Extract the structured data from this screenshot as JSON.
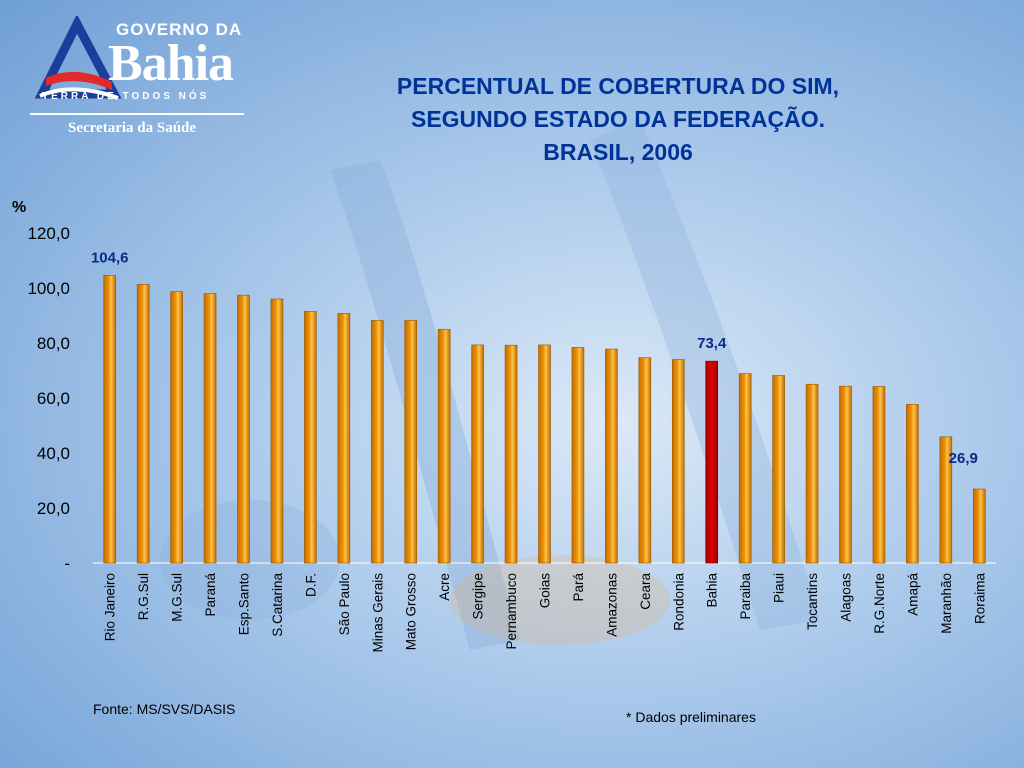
{
  "logo": {
    "top_text": "GOVERNO DA",
    "name": "Bahia",
    "tagline": "TERRA DE TODOS NÓS",
    "department": "Secretaria da Saúde"
  },
  "title_lines": [
    "PERCENTUAL DE COBERTURA DO SIM,",
    "SEGUNDO ESTADO DA FEDERAÇÃO.",
    "BRASIL, 2006"
  ],
  "colors": {
    "bar": "#f0960a",
    "highlight_bar": "#e00000",
    "title": "#003399",
    "data_label": "#0a2a8a"
  },
  "chart_data": {
    "type": "bar",
    "title": "PERCENTUAL DE COBERTURA DO SIM, SEGUNDO ESTADO DA FEDERAÇÃO. BRASIL, 2006",
    "ylabel": "%",
    "xlabel": "",
    "ylim": [
      0,
      120
    ],
    "yticks": [
      0,
      20,
      40,
      60,
      80,
      100,
      120
    ],
    "ytick_labels": [
      "-",
      "20,0",
      "40,0",
      "60,0",
      "80,0",
      "100,0",
      "120,0"
    ],
    "grid": false,
    "categories": [
      "Rio Janeiro",
      "R.G.Sul",
      "M.G.Sul",
      "Paraná",
      "Esp.Santo",
      "S.Catarina",
      "D.F.",
      "São Paulo",
      "Minas Gerais",
      "Mato Grosso",
      "Acre",
      "Sergipe",
      "Pernambuco",
      "Goias",
      "Pará",
      "Amazonas",
      "Ceara",
      "Rondonia",
      "Bahia",
      "Paraiba",
      "Piaui",
      "Tocantins",
      "Alagoas",
      "R.G.Norte",
      "Amapá",
      "Maranhão",
      "Roraima"
    ],
    "values": [
      104.6,
      101.3,
      98.7,
      98.0,
      97.4,
      96.0,
      91.5,
      90.8,
      88.2,
      88.2,
      85.0,
      79.3,
      79.2,
      79.3,
      78.4,
      77.8,
      74.7,
      74.0,
      73.4,
      68.9,
      68.2,
      65.0,
      64.3,
      64.2,
      57.7,
      45.9,
      26.9
    ],
    "highlight_index": 18,
    "data_labels": [
      {
        "index": 0,
        "text": "104,6"
      },
      {
        "index": 18,
        "text": "73,4"
      },
      {
        "index": 26,
        "text": "26,9"
      }
    ]
  },
  "source": "Fonte: MS/SVS/DASIS",
  "footnote": "* Dados preliminares"
}
